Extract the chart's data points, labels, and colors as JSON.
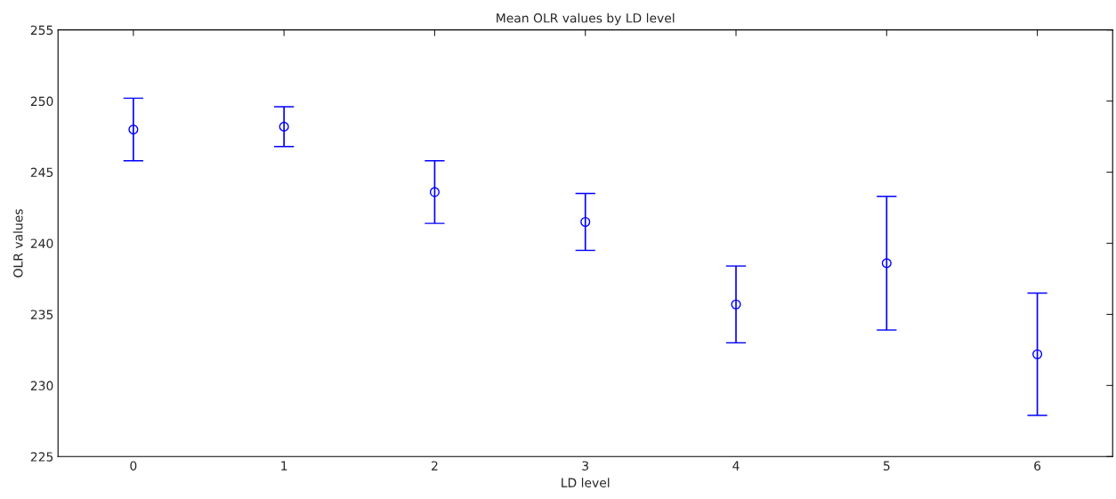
{
  "chart_data": {
    "type": "scatter",
    "title": "Mean OLR values by LD level",
    "xlabel": "LD level",
    "ylabel": "OLR values",
    "x": [
      0,
      1,
      2,
      3,
      4,
      5,
      6
    ],
    "series": [
      {
        "color": "#0000ff",
        "values": [
          248.0,
          248.2,
          243.6,
          241.5,
          235.7,
          238.6,
          232.2
        ],
        "errors": [
          2.2,
          1.4,
          2.2,
          2.0,
          2.7,
          4.7,
          4.3
        ]
      }
    ],
    "xlim": [
      -0.5,
      6.5
    ],
    "xticks": [
      0,
      1,
      2,
      3,
      4,
      5,
      6
    ],
    "ylim": [
      225,
      255
    ],
    "yticks": [
      225,
      230,
      235,
      240,
      245,
      250,
      255
    ],
    "marker": "circle",
    "grid": false,
    "legend": false
  }
}
